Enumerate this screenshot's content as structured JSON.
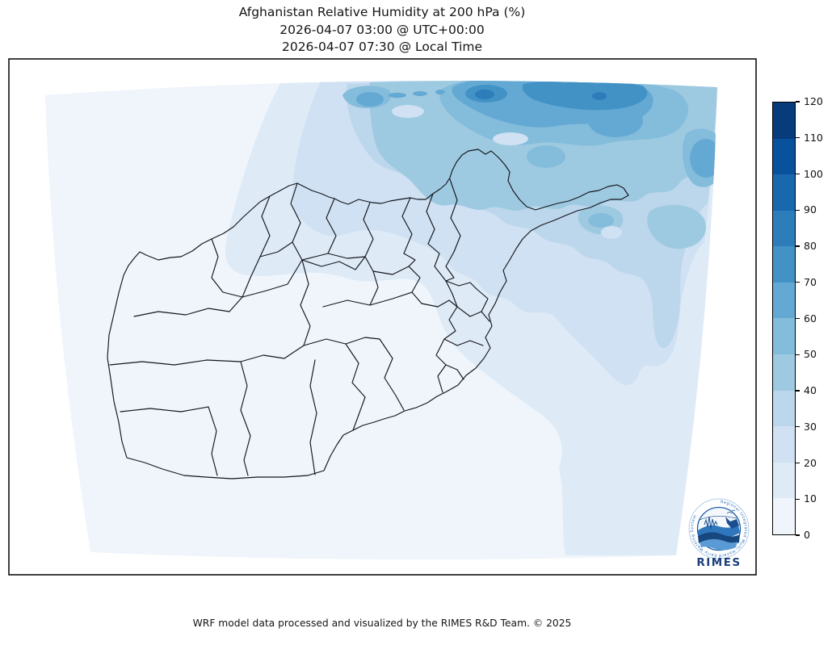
{
  "figure": {
    "title_line1": "Afghanistan Relative Humidity at 200 hPa (%)",
    "title_line2": "2026-04-07 03:00 @ UTC+00:00",
    "title_line3": "2026-04-07 07:30 @ Local Time",
    "footer": "WRF model data processed and visualized by the RIMES R&D Team. © 2025"
  },
  "logo": {
    "name": "RIMES",
    "ring_text": "Regional Integrated Multi-Hazard Early Warning System"
  },
  "colorbar": {
    "min": 0,
    "max": 120,
    "tick_step": 10,
    "ticks": [
      0,
      10,
      20,
      30,
      40,
      50,
      60,
      70,
      80,
      90,
      100,
      110,
      120
    ],
    "segment_colors_low_to_high": [
      "#eff5fb",
      "#deebf7",
      "#cfe1f2",
      "#bcd6eb",
      "#9ecae1",
      "#84bcdb",
      "#64a9d3",
      "#4292c6",
      "#2e7dbb",
      "#1967ad",
      "#08519c",
      "#083b7c"
    ]
  },
  "chart_data": {
    "type": "heatmap",
    "subtype": "filled-contour-map",
    "title": "Afghanistan Relative Humidity at 200 hPa (%)",
    "variable": "Relative Humidity",
    "pressure_level_hPa": 200,
    "units": "%",
    "valid_time_utc": "2026-04-07 03:00 @ UTC+00:00",
    "valid_time_local": "2026-04-07 07:30 @ Local Time",
    "region": "Afghanistan (province/admin-1 boundaries drawn)",
    "colormap": "Blues, 12 discrete bins",
    "contour_levels": [
      0,
      10,
      20,
      30,
      40,
      50,
      60,
      70,
      80,
      90,
      100,
      110,
      120
    ],
    "legend_position": "right vertical colorbar",
    "grid": false,
    "observed_field": {
      "background_range_pct": "0-10 over most of central, western and southern Afghanistan",
      "pattern": "Relative humidity increases toward the northern and northeastern edge of the model domain; a band of 20-50% crosses the far north, with embedded cores of 50-80%.",
      "maxima": [
        {
          "location": "north-central domain edge",
          "value_range_pct": "80-90"
        },
        {
          "location": "north / northeast of the Wakhan corridor",
          "value_range_pct": "70-80"
        },
        {
          "location": "northeast corner of domain",
          "value_range_pct": "60-70"
        }
      ],
      "minima": [
        {
          "location": "southwest and southern Afghanistan",
          "value_range_pct": "0-10"
        }
      ]
    }
  }
}
